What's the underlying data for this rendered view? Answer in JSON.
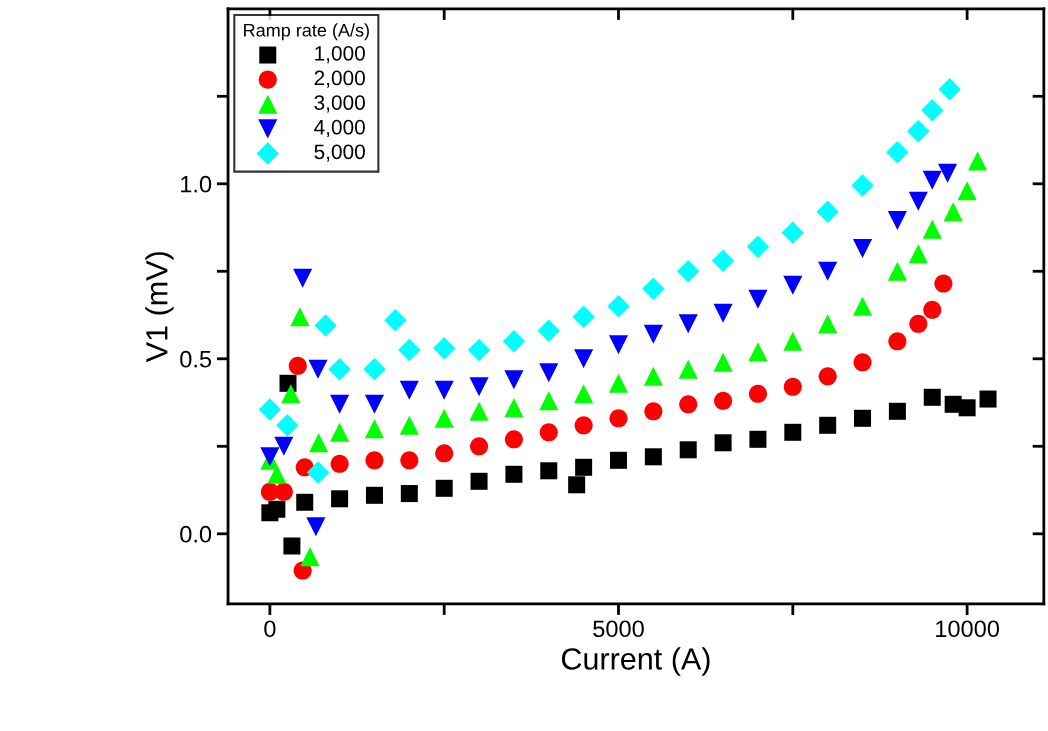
{
  "chart_data": {
    "type": "scatter",
    "xlabel": "Current (A)",
    "ylabel": "V1 (mV)",
    "legend_title": "Ramp rate (A/s)",
    "legend": "top left",
    "grid": false,
    "xlim": [
      -600,
      11100
    ],
    "ylim": [
      -0.2,
      1.5
    ],
    "xticks": [
      0,
      {
        "value": 2500,
        "label": null
      },
      5000,
      {
        "value": 7500,
        "label": null
      },
      10000
    ],
    "yticks": [
      {
        "value": 0.0,
        "label": "0.0"
      },
      {
        "value": 0.25,
        "label": null
      },
      {
        "value": 0.5,
        "label": "0.5"
      },
      {
        "value": 0.75,
        "label": null
      },
      {
        "value": 1.0,
        "label": "1.0"
      },
      {
        "value": 1.25,
        "label": null
      }
    ],
    "series": [
      {
        "name": "1,000",
        "color": "#000000",
        "marker": "square",
        "x": [
          0,
          100,
          260,
          316,
          500,
          1000,
          1500,
          2000,
          2500,
          3000,
          3500,
          4000,
          4400,
          4500,
          5000,
          5500,
          6000,
          6500,
          7000,
          7500,
          8000,
          8500,
          9000,
          9500,
          9800,
          10000,
          10300
        ],
        "values": [
          0.06,
          0.07,
          0.43,
          -0.035,
          0.09,
          0.1,
          0.11,
          0.115,
          0.13,
          0.15,
          0.17,
          0.18,
          0.14,
          0.19,
          0.21,
          0.22,
          0.24,
          0.26,
          0.27,
          0.29,
          0.31,
          0.33,
          0.35,
          0.39,
          0.37,
          0.36,
          0.385
        ]
      },
      {
        "name": "2,000",
        "color": "#ff0000",
        "marker": "circle",
        "x": [
          0,
          200,
          400,
          470,
          500,
          1000,
          1500,
          2000,
          2500,
          3000,
          3500,
          4000,
          4500,
          5000,
          5500,
          6000,
          6500,
          7000,
          7500,
          8000,
          8500,
          9000,
          9300,
          9500,
          9660
        ],
        "values": [
          0.12,
          0.12,
          0.48,
          -0.105,
          0.19,
          0.2,
          0.21,
          0.21,
          0.23,
          0.25,
          0.27,
          0.29,
          0.31,
          0.33,
          0.35,
          0.37,
          0.38,
          0.4,
          0.42,
          0.45,
          0.49,
          0.55,
          0.6,
          0.64,
          0.715
        ]
      },
      {
        "name": "3,000",
        "color": "#00ff00",
        "marker": "triangle",
        "x": [
          0,
          100,
          300,
          430,
          575,
          700,
          1000,
          1500,
          2000,
          2500,
          3000,
          3500,
          4000,
          4500,
          5000,
          5500,
          6000,
          6500,
          7000,
          7500,
          8000,
          8500,
          9000,
          9300,
          9500,
          9800,
          10000,
          10150
        ],
        "values": [
          0.21,
          0.17,
          0.4,
          0.62,
          -0.065,
          0.26,
          0.29,
          0.3,
          0.31,
          0.33,
          0.35,
          0.36,
          0.38,
          0.4,
          0.43,
          0.45,
          0.47,
          0.49,
          0.52,
          0.55,
          0.6,
          0.65,
          0.75,
          0.8,
          0.87,
          0.92,
          0.98,
          1.065
        ]
      },
      {
        "name": "4,000",
        "color": "#0000ff",
        "marker": "triangle_down",
        "x": [
          0,
          200,
          470,
          660,
          690,
          1000,
          1500,
          2000,
          2500,
          3000,
          3500,
          4000,
          4500,
          5000,
          5500,
          6000,
          6500,
          7000,
          7500,
          8000,
          8500,
          9000,
          9300,
          9500,
          9720
        ],
        "values": [
          0.22,
          0.25,
          0.73,
          0.02,
          0.47,
          0.37,
          0.37,
          0.41,
          0.41,
          0.42,
          0.44,
          0.46,
          0.5,
          0.54,
          0.57,
          0.6,
          0.63,
          0.67,
          0.71,
          0.75,
          0.815,
          0.895,
          0.95,
          1.01,
          1.03
        ]
      },
      {
        "name": "5,000",
        "color": "#00ffff",
        "marker": "diamond",
        "x": [
          0,
          250,
          690,
          800,
          1000,
          1500,
          1800,
          2000,
          2500,
          3000,
          3500,
          4000,
          4500,
          5000,
          5500,
          6000,
          6500,
          7000,
          7500,
          8000,
          8500,
          9000,
          9300,
          9500,
          9750
        ],
        "values": [
          0.355,
          0.31,
          0.175,
          0.595,
          0.47,
          0.47,
          0.61,
          0.525,
          0.53,
          0.525,
          0.55,
          0.58,
          0.62,
          0.65,
          0.7,
          0.75,
          0.78,
          0.82,
          0.86,
          0.92,
          0.995,
          1.09,
          1.15,
          1.21,
          1.27
        ]
      }
    ]
  }
}
